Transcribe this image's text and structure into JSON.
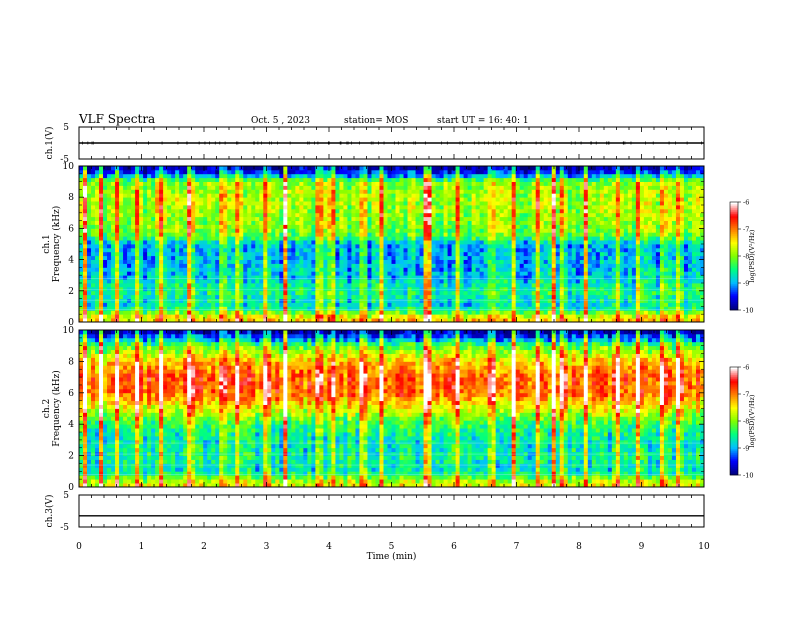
{
  "header": {
    "title": "VLF Spectra",
    "date": "Oct. 5 , 2023",
    "station": "station= MOS",
    "start_ut": "start  UT =   16: 40: 1"
  },
  "chart_data": [
    {
      "type": "line",
      "panel": "ch1-voltage",
      "ylabel": "ch.1(V)",
      "yticks": [
        "5",
        "-5"
      ],
      "ylim": [
        -5,
        5
      ],
      "series": [
        {
          "values": [
            0,
            0,
            0,
            0,
            0,
            0,
            0,
            0,
            0,
            0
          ]
        }
      ]
    },
    {
      "type": "heatmap",
      "panel": "ch1-spectrogram",
      "ylabel": "ch.1\nFrequency (kHz)",
      "yticks": [
        "0",
        "2",
        "4",
        "6",
        "8",
        "10"
      ],
      "ylim": [
        0,
        10
      ],
      "xlim": [
        0,
        10
      ],
      "colorbar": {
        "label": "log(PSD)(V²/Hz)",
        "ticks": [
          "-6",
          "-7",
          "-8",
          "-9",
          "-10"
        ],
        "range": [
          -10,
          -6
        ]
      },
      "band_profile": [
        {
          "kHz": 0.25,
          "log_psd": -7.4
        },
        {
          "kHz": 1.0,
          "log_psd": -8.8
        },
        {
          "kHz": 2.0,
          "log_psd": -8.5
        },
        {
          "kHz": 3.0,
          "log_psd": -8.9
        },
        {
          "kHz": 4.0,
          "log_psd": -9.0
        },
        {
          "kHz": 5.0,
          "log_psd": -9.0
        },
        {
          "kHz": 5.5,
          "log_psd": -8.2
        },
        {
          "kHz": 6.0,
          "log_psd": -8.0
        },
        {
          "kHz": 7.0,
          "log_psd": -7.9
        },
        {
          "kHz": 8.0,
          "log_psd": -7.8
        },
        {
          "kHz": 9.0,
          "log_psd": -8.0
        },
        {
          "kHz": 9.5,
          "log_psd": -9.3
        },
        {
          "kHz": 10.0,
          "log_psd": -10.0
        }
      ]
    },
    {
      "type": "heatmap",
      "panel": "ch2-spectrogram",
      "ylabel": "ch.2\nFrequency (kHz)",
      "yticks": [
        "0",
        "2",
        "4",
        "6",
        "8",
        "10"
      ],
      "ylim": [
        0,
        10
      ],
      "xlim": [
        0,
        10
      ],
      "colorbar": {
        "label": "log(PSD)(V²/Hz)",
        "ticks": [
          "-6",
          "-7",
          "-8",
          "-9",
          "-10"
        ],
        "range": [
          -10,
          -6
        ]
      },
      "band_profile": [
        {
          "kHz": 0.25,
          "log_psd": -7.6
        },
        {
          "kHz": 1.0,
          "log_psd": -8.7
        },
        {
          "kHz": 2.0,
          "log_psd": -8.6
        },
        {
          "kHz": 3.0,
          "log_psd": -8.7
        },
        {
          "kHz": 4.0,
          "log_psd": -8.4
        },
        {
          "kHz": 5.0,
          "log_psd": -7.6
        },
        {
          "kHz": 6.0,
          "log_psd": -6.9
        },
        {
          "kHz": 7.0,
          "log_psd": -6.8
        },
        {
          "kHz": 8.0,
          "log_psd": -7.3
        },
        {
          "kHz": 9.0,
          "log_psd": -8.2
        },
        {
          "kHz": 9.5,
          "log_psd": -9.2
        },
        {
          "kHz": 10.0,
          "log_psd": -10.0
        }
      ]
    },
    {
      "type": "line",
      "panel": "ch3-voltage",
      "ylabel": "ch.3(V)",
      "yticks": [
        "5",
        "-5"
      ],
      "ylim": [
        -5,
        5
      ],
      "series": [
        {
          "values": [
            -1.5,
            -1.5,
            -1.5,
            -1.5,
            -1.5,
            -1.5,
            -1.5,
            -1.5,
            -1.5,
            -1.5
          ]
        }
      ]
    }
  ],
  "x_axis": {
    "label": "Time (min)",
    "ticks": [
      "0",
      "1",
      "2",
      "3",
      "4",
      "5",
      "6",
      "7",
      "8",
      "9",
      "10"
    ],
    "range": [
      0,
      10
    ]
  },
  "bursts_min": [
    0.1,
    0.35,
    0.6,
    0.95,
    1.3,
    1.75,
    1.8,
    2.3,
    2.55,
    3.0,
    3.3,
    3.85,
    4.05,
    4.55,
    4.85,
    5.55,
    5.6,
    6.05,
    6.6,
    6.95,
    7.35,
    7.6,
    7.75,
    8.1,
    8.6,
    8.95,
    9.35,
    9.6
  ],
  "colors": {
    "scale": [
      "#000080",
      "#0000ff",
      "#00c0ff",
      "#00ff80",
      "#80ff00",
      "#ffff00",
      "#ff8000",
      "#ff0000",
      "#ffffff"
    ]
  }
}
